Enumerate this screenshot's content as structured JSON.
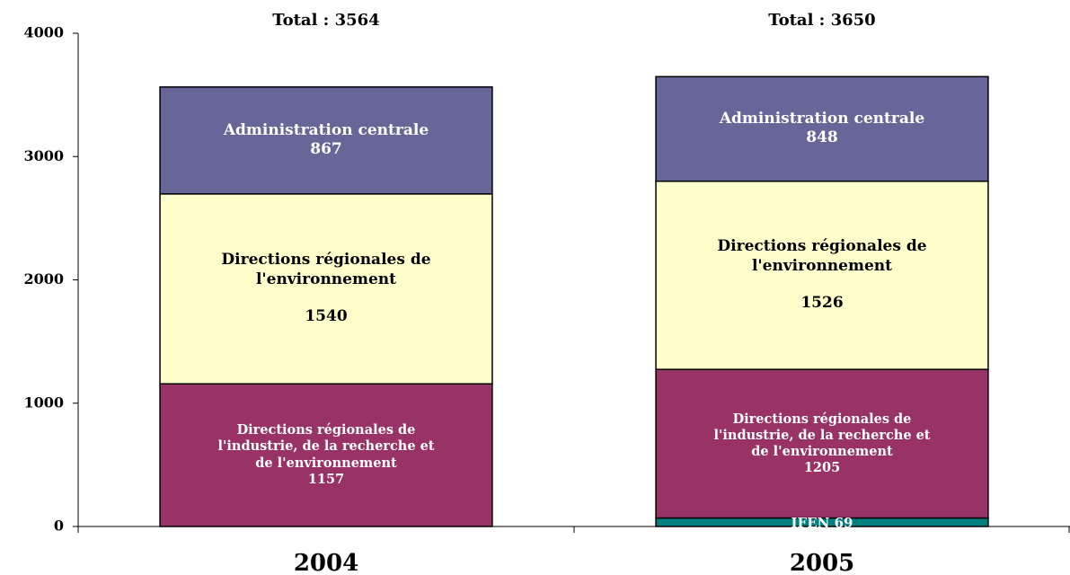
{
  "chart_data": {
    "type": "stacked_bar",
    "categories": [
      "2004",
      "2005"
    ],
    "series": [
      {
        "name": "IFEN",
        "color": "#008080",
        "values": [
          null,
          69
        ]
      },
      {
        "name": "Directions régionales de l'industrie, de la recherche et de l'environnement",
        "color": "#993366",
        "values": [
          1157,
          1205
        ]
      },
      {
        "name": "Directions régionales de l'environnement",
        "color": "#ffffcc",
        "values": [
          1540,
          1526
        ]
      },
      {
        "name": "Administration centrale",
        "color": "#666699",
        "values": [
          867,
          848
        ]
      }
    ],
    "totals": {
      "label": "Total :",
      "values": [
        3564,
        3650
      ]
    },
    "ylim": [
      0,
      4000
    ],
    "yticks": [
      0,
      1000,
      2000,
      3000,
      4000
    ]
  }
}
